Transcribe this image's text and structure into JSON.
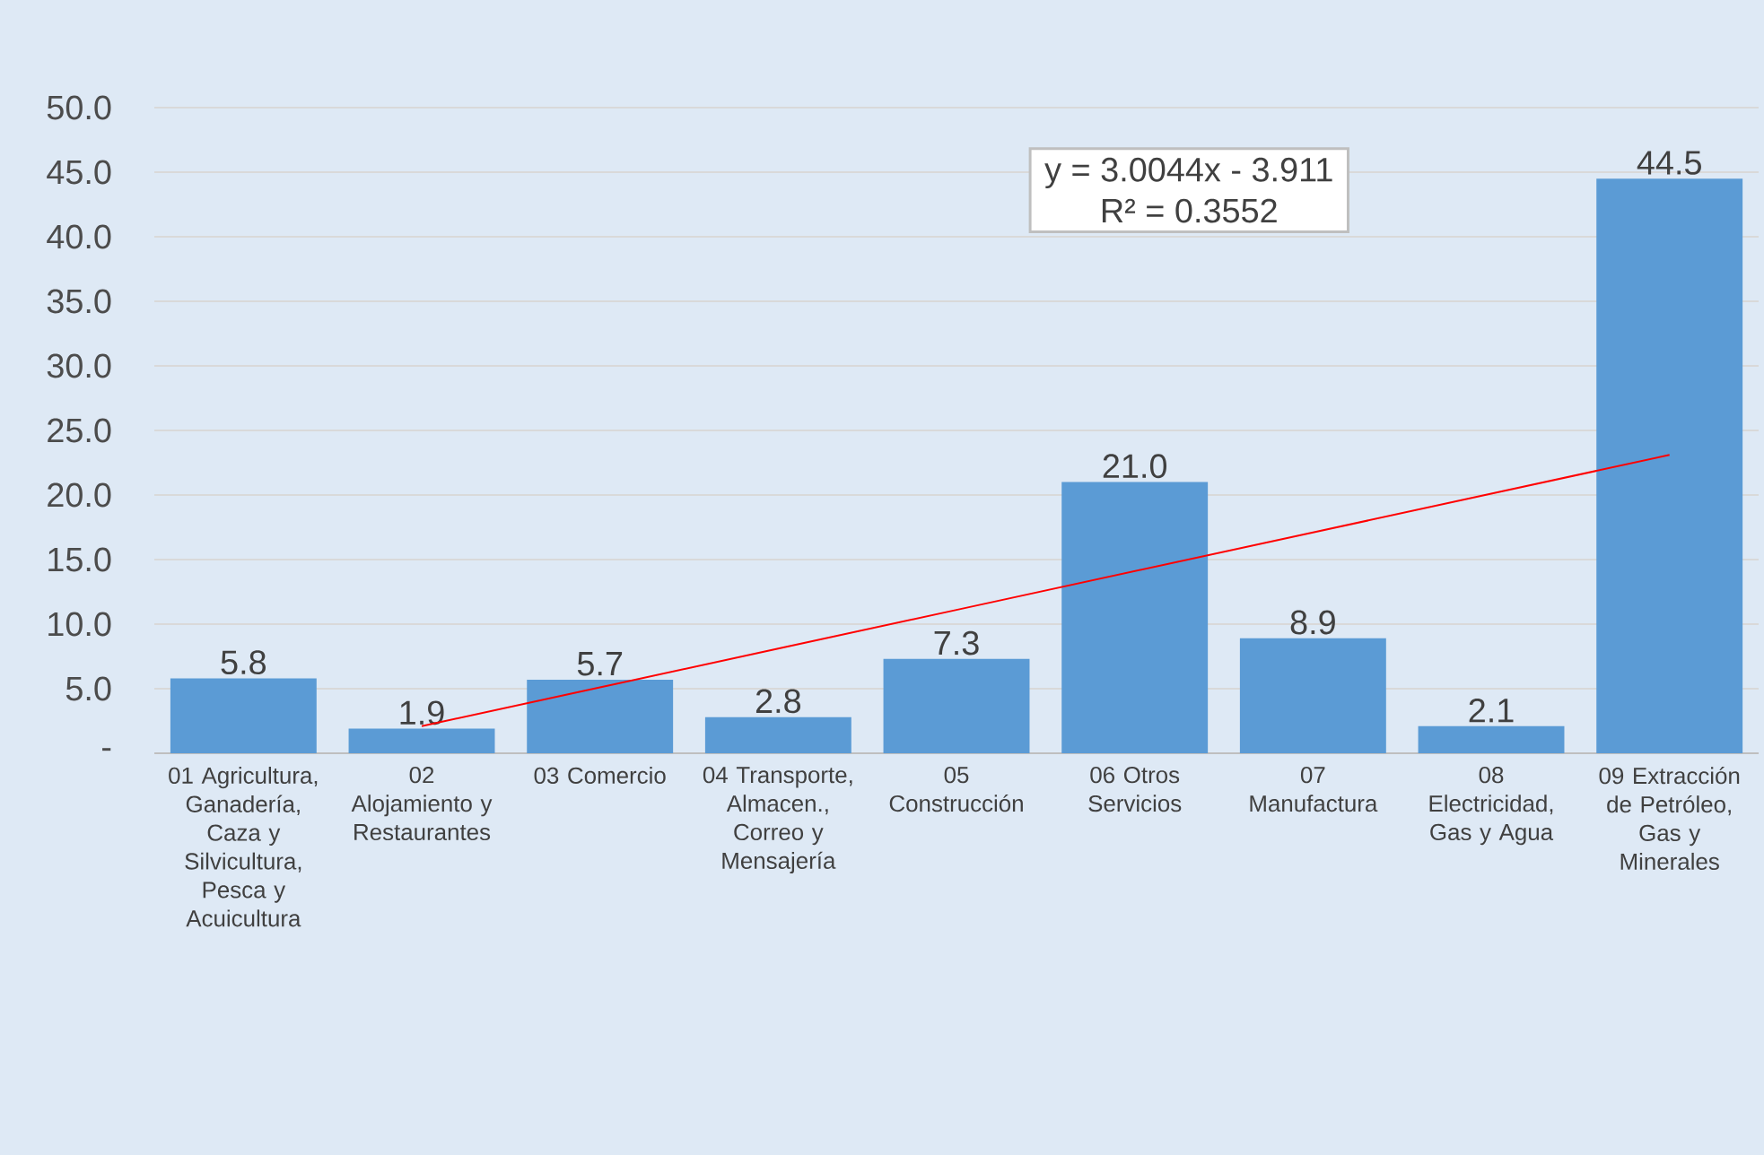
{
  "chart_data": {
    "type": "bar",
    "categories": [
      "01 Agricultura, Ganadería, Caza y Silvicultura, Pesca y Acuicultura",
      "02 Alojamiento y Restaurantes",
      "03 Comercio",
      "04 Transporte, Almacen., Correo y Mensajería",
      "05 Construcción",
      "06 Otros Servicios",
      "07 Manufactura",
      "08 Electricidad, Gas y Agua",
      "09 Extracción de Petróleo, Gas y Minerales"
    ],
    "series": [
      {
        "color": "#5b9bd5",
        "values": [
          5.8,
          1.9,
          5.7,
          2.8,
          7.3,
          21.0,
          8.9,
          2.1,
          44.5
        ],
        "value_labels": [
          "5.8",
          "1.9",
          "5.7",
          "2.8",
          "7.3",
          "21.0",
          "8.9",
          "2.1",
          "44.5"
        ]
      },
      {
        "type": "line",
        "color": "#ff0000",
        "values": [
          null,
          2.1,
          5.1,
          8.1,
          11.1,
          14.1,
          17.1,
          20.1,
          23.1
        ]
      }
    ],
    "ylim": [
      0,
      50
    ],
    "yticks": [
      {
        "value": 0,
        "label": "-"
      },
      {
        "value": 5,
        "label": "5.0"
      },
      {
        "value": 10,
        "label": "10.0"
      },
      {
        "value": 15,
        "label": "15.0"
      },
      {
        "value": 20,
        "label": "20.0"
      },
      {
        "value": 25,
        "label": "25.0"
      },
      {
        "value": 30,
        "label": "30.0"
      },
      {
        "value": 35,
        "label": "35.0"
      },
      {
        "value": 40,
        "label": "40.0"
      },
      {
        "value": 45,
        "label": "45.0"
      },
      {
        "value": 50,
        "label": "50.0"
      }
    ],
    "grid": "y",
    "annotations": [
      "y = 3.0044x - 3.911",
      "R² = 0.3552"
    ]
  }
}
